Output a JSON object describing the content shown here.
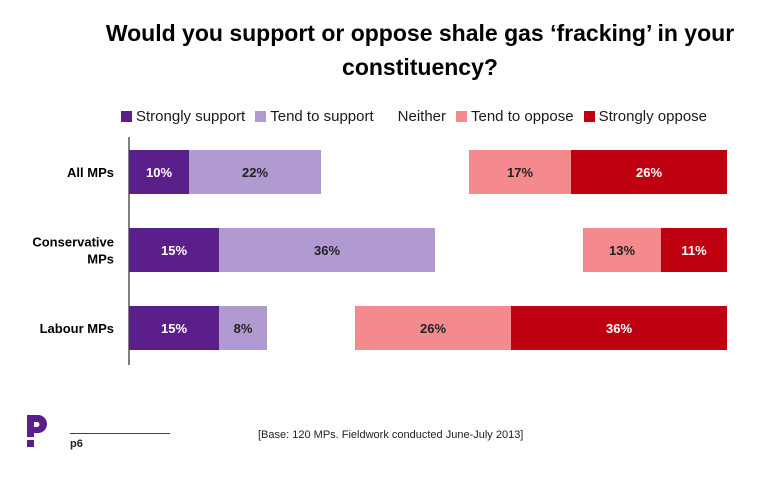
{
  "title": "Would you support or oppose shale gas ‘fracking’ in your constituency?",
  "footer": {
    "page": "p6",
    "base": "[Base: 120 MPs. Fieldwork conducted June-July 2013]",
    "logo_icon": "populus-p-logo"
  },
  "chart_data": {
    "type": "bar",
    "orientation": "horizontal",
    "stacked": true,
    "diverging": true,
    "title": "Would you support or oppose shale gas ‘fracking’ in your constituency?",
    "legend_position": "top",
    "categories": [
      "All MPs",
      "Conservative MPs",
      "Labour MPs"
    ],
    "series": [
      {
        "name": "Strongly support",
        "color": "#5b1f8c",
        "values": [
          10,
          15,
          15
        ]
      },
      {
        "name": "Tend to support",
        "color": "#b09ad0",
        "values": [
          22,
          36,
          8
        ]
      },
      {
        "name": "Neither",
        "color": null,
        "values": [
          null,
          null,
          null
        ]
      },
      {
        "name": "Tend to oppose",
        "color": "#f48a8e",
        "values": [
          17,
          13,
          26
        ]
      },
      {
        "name": "Strongly oppose",
        "color": "#bf0010",
        "values": [
          26,
          11,
          36
        ]
      }
    ],
    "value_labels": [
      [
        "10%",
        "22%",
        "",
        "17%",
        "26%"
      ],
      [
        "15%",
        "36%",
        "",
        "13%",
        "11%"
      ],
      [
        "15%",
        "8%",
        "",
        "26%",
        "36%"
      ]
    ],
    "grid": false
  }
}
